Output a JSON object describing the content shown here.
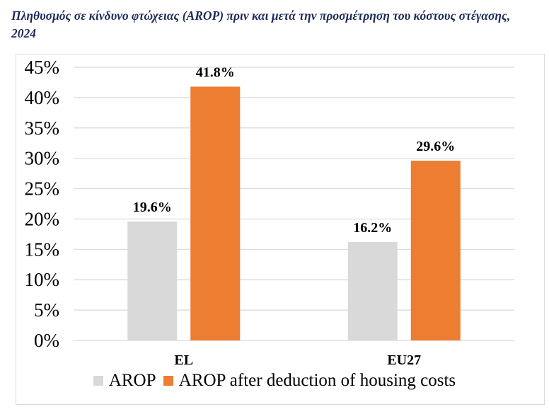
{
  "title": "Πληθυσμός σε κίνδυνο φτώχειας (AROP) πριν και μετά την προσμέτρηση του κόστους στέγασης, 2024",
  "colors": {
    "title": "#1f2a5a",
    "arop": "#d9d9d9",
    "arop_housing": "#ed7d31",
    "grid": "#d9d9d9"
  },
  "chart_data": {
    "type": "bar",
    "title": "Πληθυσμός σε κίνδυνο φτώχειας (AROP) πριν και μετά την προσμέτρηση του κόστους στέγασης, 2024",
    "xlabel": "",
    "ylabel": "",
    "categories": [
      "EL",
      "EU27"
    ],
    "series": [
      {
        "name": "AROP",
        "color": "#d9d9d9",
        "values": [
          19.6,
          16.2
        ],
        "labels": [
          "19.6%",
          "16.2%"
        ]
      },
      {
        "name": "AROP after deduction of housing costs",
        "color": "#ed7d31",
        "values": [
          41.8,
          29.6
        ],
        "labels": [
          "41.8%",
          "29.6%"
        ]
      }
    ],
    "ylim": [
      0,
      45
    ],
    "yticks": [
      0,
      5,
      10,
      15,
      20,
      25,
      30,
      35,
      40,
      45
    ],
    "ytick_labels": [
      "0%",
      "5%",
      "10%",
      "15%",
      "20%",
      "25%",
      "30%",
      "35%",
      "40%",
      "45%"
    ],
    "grid": true,
    "legend_position": "bottom"
  },
  "legend": [
    {
      "label": "AROP",
      "color": "#d9d9d9"
    },
    {
      "label": "AROP after deduction of housing costs",
      "color": "#ed7d31"
    }
  ]
}
